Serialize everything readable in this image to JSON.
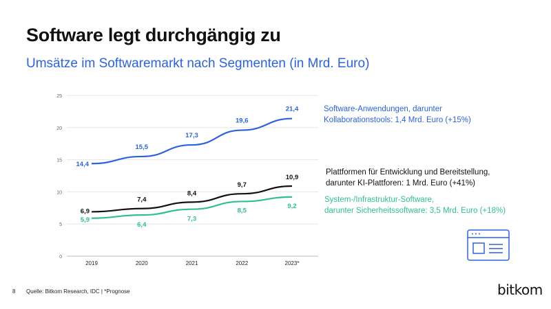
{
  "title": "Software legt durchgängig zu",
  "subtitle": "Umsätze im Softwaremarkt nach Segmenten (in Mrd. Euro)",
  "colors": {
    "blue": "#2a62e0",
    "black": "#111111",
    "green": "#2fc08a"
  },
  "chart_data": {
    "type": "line",
    "categories": [
      "2019",
      "2020",
      "2021",
      "2022",
      "2023*"
    ],
    "ylim": [
      0,
      25
    ],
    "yticks": [
      "0",
      "5",
      "10",
      "15",
      "20",
      "25"
    ],
    "grid": true,
    "series": [
      {
        "name": "Software-Anwendungen, darunter Kollaborationstools: 1,4 Mrd. Euro (+15%)",
        "color": "#2a62e0",
        "values": [
          14.4,
          15.5,
          17.3,
          19.6,
          21.4
        ],
        "labels": [
          "14,4",
          "15,5",
          "17,3",
          "19,6",
          "21,4"
        ]
      },
      {
        "name": "Plattformen für Entwicklung und Bereitstellung, darunter KI-Plattforen: 1 Mrd. Euro (+41%)",
        "color": "#111111",
        "values": [
          6.9,
          7.4,
          8.4,
          9.7,
          10.9
        ],
        "labels": [
          "6,9",
          "7,4",
          "8,4",
          "9,7",
          "10,9"
        ]
      },
      {
        "name": "System-/Infrastruktur-Software, darunter Sicherheitssoftware: 3,5 Mrd. Euro (+18%)",
        "color": "#2fc08a",
        "values": [
          5.9,
          6.4,
          7.3,
          8.5,
          9.2
        ],
        "labels": [
          "5,9",
          "6,4",
          "7,3",
          "8,5",
          "9,2"
        ]
      }
    ]
  },
  "legend": {
    "blue_line1": "Software-Anwendungen, darunter",
    "blue_line2": "Kollaborationstools: 1,4 Mrd. Euro (+15%)",
    "black_line1": "Plattformen für Entwicklung und Bereitstellung,",
    "black_line2": "darunter KI-Plattforen: 1 Mrd. Euro (+41%)",
    "green_line1": "System-/Infrastruktur-Software,",
    "green_line2": "darunter Sicherheitssoftware: 3,5 Mrd. Euro (+18%)"
  },
  "footer": {
    "page": "8",
    "source": "Quelle: Bitkom Research, IDC | *Prognose"
  },
  "logo": "bitkom",
  "icon": "browser-window-icon"
}
